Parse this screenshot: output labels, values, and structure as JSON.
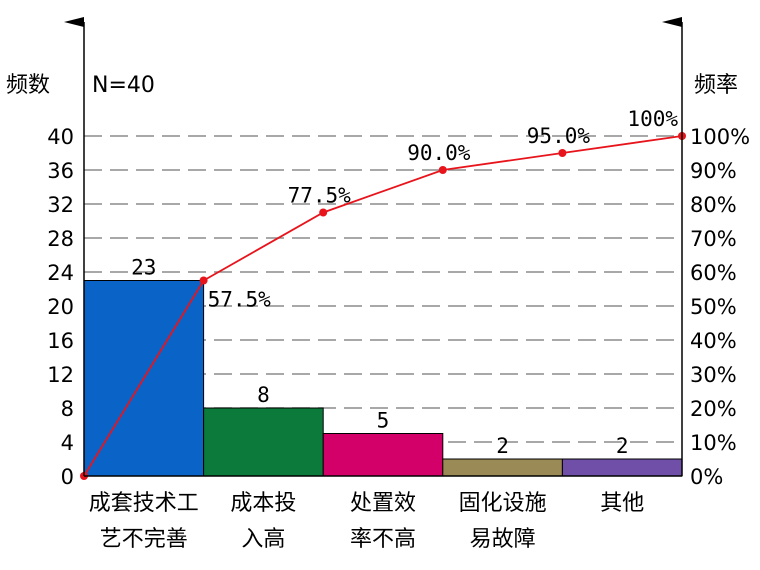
{
  "chart_data": {
    "type": "bar",
    "y_left_label": "频数",
    "n_label": "N=40",
    "y_right_label": "频率",
    "ylim": [
      0,
      40
    ],
    "y_ticks": [
      0,
      4,
      8,
      12,
      16,
      20,
      24,
      28,
      32,
      36,
      40
    ],
    "y2lim": [
      0,
      100
    ],
    "y2_ticks": [
      "0%",
      "10%",
      "20%",
      "30%",
      "40%",
      "50%",
      "60%",
      "70%",
      "80%",
      "90%",
      "100%"
    ],
    "grid": true,
    "categories": [
      [
        "成套技术工",
        "艺不完善"
      ],
      [
        "成本投",
        "入高"
      ],
      [
        "处置效",
        "率不高"
      ],
      [
        "固化设施",
        "易故障"
      ],
      [
        "其他"
      ]
    ],
    "series": [
      {
        "kind": "bar",
        "values": [
          23,
          8,
          5,
          2,
          2
        ],
        "colors": [
          "#0a64c8",
          "#0b7a3a",
          "#d4006a",
          "#9a8a55",
          "#6f4fa8"
        ]
      },
      {
        "kind": "line",
        "x": [
          0,
          1,
          2,
          3,
          4,
          5
        ],
        "values": [
          0,
          57.5,
          77.5,
          90.0,
          95.0,
          100
        ],
        "labels": [
          "",
          "57.5%",
          "77.5%",
          "90.0%",
          "95.0%",
          "100%"
        ],
        "color": "#e8141c"
      }
    ]
  }
}
